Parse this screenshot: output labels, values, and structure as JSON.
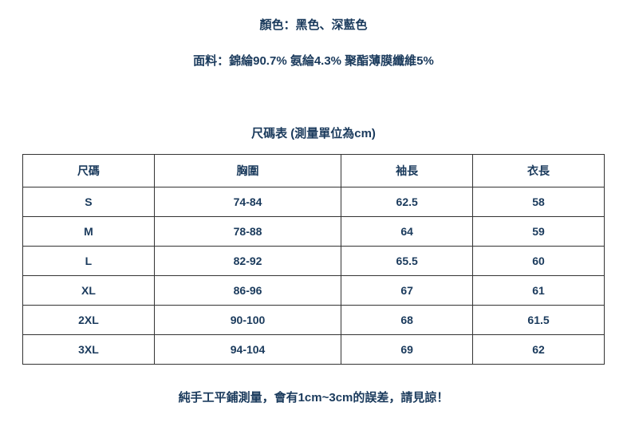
{
  "info": {
    "color_line": "顏色：黑色、深藍色",
    "fabric_line": "面料：錦綸90.7% 氨綸4.3% 聚酯薄膜纖維5%"
  },
  "table": {
    "title": "尺碼表 (測量單位為cm)",
    "columns": [
      "尺碼",
      "胸圍",
      "袖長",
      "衣長"
    ],
    "rows": [
      [
        "S",
        "74-84",
        "62.5",
        "58"
      ],
      [
        "M",
        "78-88",
        "64",
        "59"
      ],
      [
        "L",
        "82-92",
        "65.5",
        "60"
      ],
      [
        "XL",
        "86-96",
        "67",
        "61"
      ],
      [
        "2XL",
        "90-100",
        "68",
        "61.5"
      ],
      [
        "3XL",
        "94-104",
        "69",
        "62"
      ]
    ]
  },
  "footer": {
    "note": "純手工平鋪測量，會有1cm~3cm的誤差，請見諒！"
  },
  "styling": {
    "text_color": "#1a3a5c",
    "border_color": "#333333",
    "background_color": "#ffffff",
    "font_size_body": 15,
    "font_size_cell": 14,
    "font_weight": "bold",
    "columns_count": 4,
    "cell_align": "center"
  }
}
